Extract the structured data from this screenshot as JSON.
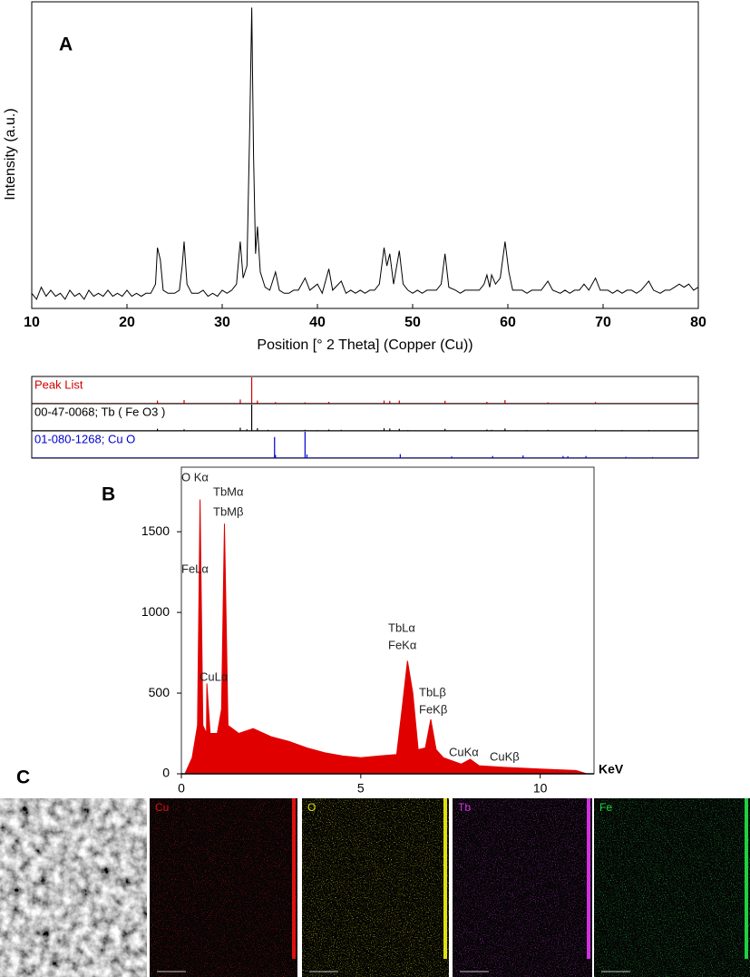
{
  "chart_data": [
    {
      "type": "line",
      "panel_label": "A",
      "x_label": "Position [° 2 Theta] (Copper (Cu))",
      "y_label": "Intensity (a.u.)",
      "xlim": [
        10,
        80
      ],
      "xticks": [
        10,
        20,
        30,
        40,
        50,
        60,
        70,
        80
      ],
      "ylim": [
        0,
        100
      ],
      "color": "#000000",
      "x": [
        10,
        10.5,
        11,
        11.5,
        12,
        12.5,
        13,
        13.5,
        14,
        14.5,
        15,
        15.5,
        16,
        16.5,
        17,
        17.5,
        18,
        18.5,
        19,
        19.5,
        20,
        20.5,
        21,
        21.5,
        22,
        22.5,
        23,
        23.2,
        23.5,
        23.8,
        24.3,
        25,
        25.5,
        25.8,
        26,
        26.3,
        26.8,
        27.5,
        28,
        28.5,
        29,
        29.5,
        30,
        30.5,
        31,
        31.5,
        31.9,
        32.2,
        32.6,
        32.9,
        33.1,
        33.3,
        33.5,
        33.7,
        34,
        34.5,
        35,
        35.6,
        36,
        36.5,
        37,
        37.5,
        38,
        38.7,
        39.2,
        40,
        40.5,
        41.2,
        41.6,
        42.5,
        43,
        43.5,
        44,
        44.5,
        45,
        45.5,
        46,
        46.5,
        47,
        47.3,
        47.6,
        48,
        48.6,
        49,
        49.5,
        50,
        50.5,
        51,
        51.5,
        52,
        52.5,
        53,
        53.4,
        53.8,
        54.5,
        55,
        55.5,
        56,
        56.5,
        57,
        57.5,
        57.8,
        58.1,
        58.3,
        58.7,
        59.2,
        59.7,
        60.1,
        60.5,
        61,
        61.5,
        62,
        62.5,
        63,
        63.5,
        64.2,
        64.7,
        65.5,
        66,
        66.5,
        67,
        67.5,
        68,
        68.5,
        69.2,
        69.7,
        70.5,
        71,
        71.5,
        72,
        72.5,
        73,
        73.5,
        74,
        74.8,
        75.3,
        76,
        76.5,
        77,
        77.5,
        78,
        78.5,
        79,
        79.5,
        80
      ],
      "values": [
        5,
        3,
        7,
        4,
        6,
        4,
        5,
        3,
        6,
        4,
        5,
        3,
        6,
        4,
        5,
        4,
        6,
        4,
        5,
        4,
        6,
        4,
        5,
        4,
        5,
        5,
        8,
        20,
        16,
        6,
        5,
        5,
        6,
        14,
        22,
        8,
        5,
        5,
        6,
        4,
        5,
        4,
        6,
        5,
        6,
        8,
        22,
        10,
        14,
        60,
        99,
        50,
        18,
        27,
        12,
        7,
        6,
        12,
        6,
        5,
        5,
        6,
        6,
        10,
        6,
        8,
        5,
        13,
        6,
        9,
        5,
        6,
        5,
        6,
        5,
        6,
        6,
        8,
        20,
        14,
        18,
        8,
        19,
        8,
        6,
        5,
        6,
        5,
        6,
        6,
        6,
        8,
        18,
        7,
        6,
        5,
        6,
        6,
        6,
        6,
        8,
        11,
        7,
        11,
        8,
        10,
        22,
        12,
        6,
        6,
        6,
        5,
        6,
        6,
        6,
        9,
        6,
        5,
        6,
        5,
        6,
        6,
        8,
        6,
        10,
        6,
        6,
        5,
        6,
        5,
        6,
        6,
        5,
        6,
        9,
        6,
        5,
        6,
        6,
        7,
        8,
        7,
        8,
        6,
        7
      ]
    },
    {
      "type": "stick",
      "xlim": [
        10,
        80
      ],
      "ylim": [
        0,
        100
      ],
      "series": [
        {
          "name": "Peak List",
          "color": "#d40000",
          "x": [
            23.2,
            26,
            31.9,
            33.1,
            33.7,
            35.6,
            38.7,
            41.2,
            47,
            47.6,
            48.6,
            53.4,
            57.8,
            59.7,
            64.2,
            69.2
          ],
          "values": [
            12,
            14,
            16,
            100,
            12,
            6,
            5,
            7,
            12,
            11,
            12,
            11,
            7,
            14,
            5,
            6
          ]
        },
        {
          "name": "00-47-0068; Tb ( Fe O3 )",
          "color": "#000000",
          "x": [
            23.2,
            26,
            31.9,
            32.6,
            33.1,
            33.7,
            34.8,
            38.7,
            40,
            41.2,
            42.5,
            47,
            47.6,
            48.6,
            49.5,
            53.4,
            57.8,
            58.3,
            59.7,
            62,
            64.2,
            69.2,
            72,
            74.8
          ],
          "values": [
            8,
            6,
            12,
            6,
            100,
            10,
            4,
            4,
            3,
            5,
            4,
            10,
            9,
            8,
            3,
            8,
            5,
            4,
            9,
            3,
            4,
            4,
            3,
            3
          ]
        },
        {
          "name": "01-080-1268; Cu O",
          "color": "#0000d0",
          "x": [
            35.5,
            35.6,
            38.7,
            38.9,
            48.7,
            54.1,
            58.4,
            61.6,
            65.8,
            66.3,
            68.2,
            72.4,
            75.2
          ],
          "values": [
            80,
            12,
            100,
            14,
            15,
            6,
            8,
            10,
            8,
            7,
            8,
            5,
            4
          ]
        }
      ]
    },
    {
      "type": "area",
      "panel_label": "B",
      "x_label": "KeV",
      "xlim": [
        0,
        11.5
      ],
      "xticks": [
        0,
        5,
        10
      ],
      "ylim": [
        0,
        1900
      ],
      "yticks": [
        0,
        500,
        1000,
        1500
      ],
      "color": "#e00000",
      "x": [
        0.1,
        0.3,
        0.45,
        0.52,
        0.6,
        0.7,
        0.71,
        0.8,
        1.0,
        1.12,
        1.2,
        1.3,
        1.6,
        2,
        2.5,
        3,
        3.5,
        4,
        4.5,
        5,
        5.5,
        6,
        6.15,
        6.3,
        6.45,
        6.6,
        6.8,
        6.95,
        7.1,
        7.3,
        7.8,
        8.05,
        8.3,
        9,
        10,
        11,
        11.3
      ],
      "values": [
        0,
        100,
        300,
        1700,
        300,
        250,
        560,
        250,
        250,
        400,
        1550,
        300,
        250,
        280,
        230,
        200,
        160,
        130,
        110,
        100,
        110,
        120,
        400,
        700,
        500,
        150,
        160,
        337,
        150,
        100,
        60,
        90,
        50,
        40,
        30,
        20,
        0
      ],
      "annotations": [
        "O Kα",
        "TbMα",
        "TbMβ",
        "FeLα",
        "CuLα",
        "TbLα",
        "FeKα",
        "TbLβ",
        "FeKβ",
        "CuKα",
        "CuKβ"
      ]
    }
  ],
  "panel_c": {
    "label": "C",
    "maps": [
      {
        "label": "Cu",
        "color": "#e01010"
      },
      {
        "label": "O",
        "color": "#e0e010"
      },
      {
        "label": "Tb",
        "color": "#d030e0"
      },
      {
        "label": "Fe",
        "color": "#20d040"
      }
    ]
  }
}
